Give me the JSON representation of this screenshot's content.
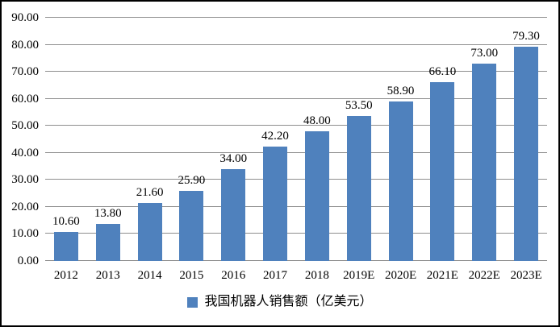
{
  "chart_data": {
    "type": "bar",
    "categories": [
      "2012",
      "2013",
      "2014",
      "2015",
      "2016",
      "2017",
      "2018",
      "2019E",
      "2020E",
      "2021E",
      "2022E",
      "2023E"
    ],
    "values": [
      10.6,
      13.8,
      21.6,
      25.9,
      34.0,
      42.2,
      48.0,
      53.5,
      58.9,
      66.1,
      73.0,
      79.3
    ],
    "value_labels": [
      "10.60",
      "13.80",
      "21.60",
      "25.90",
      "34.00",
      "42.20",
      "48.00",
      "53.50",
      "58.90",
      "66.10",
      "73.00",
      "79.30"
    ],
    "ylim": [
      0,
      90
    ],
    "ytick_step": 10,
    "ytick_labels": [
      "0.00",
      "10.00",
      "20.00",
      "30.00",
      "40.00",
      "50.00",
      "60.00",
      "70.00",
      "80.00",
      "90.00"
    ],
    "grid": true,
    "legend": "我国机器人销售额（亿美元）",
    "legend_position": "bottom",
    "bar_color": "#4F81BD",
    "gridline_color": "#8E8E8E",
    "frame_color": "#000000",
    "text_color": "#000000"
  }
}
